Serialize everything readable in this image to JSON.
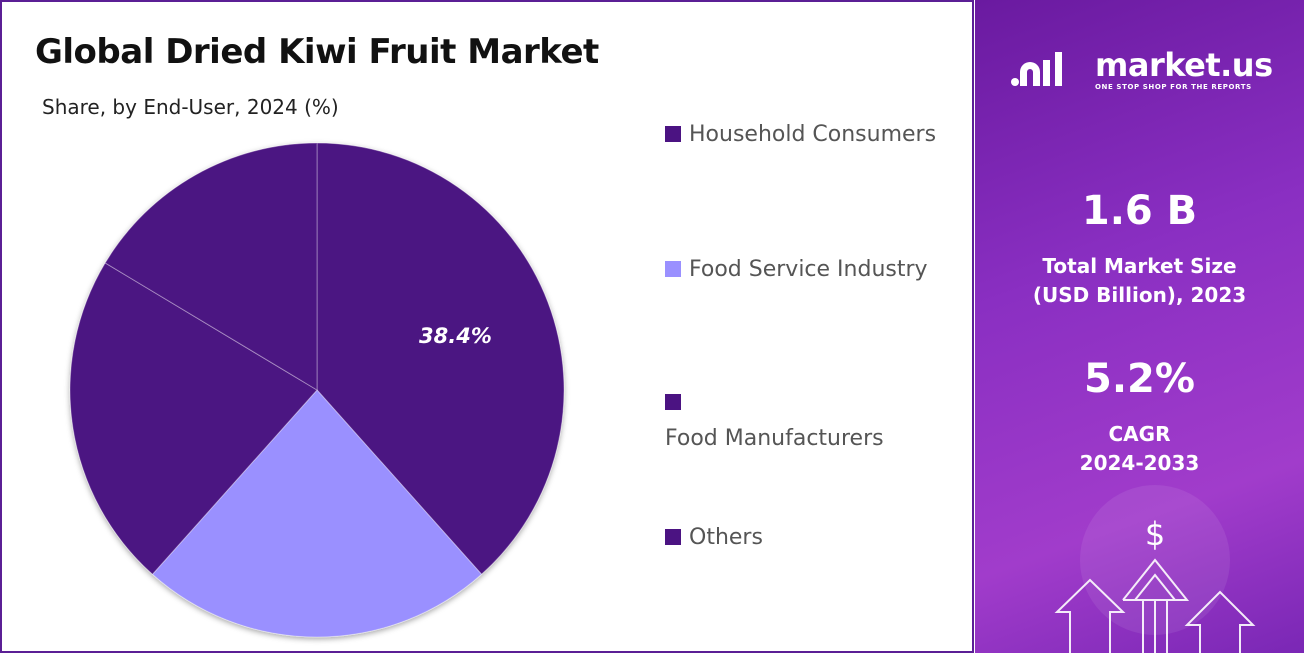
{
  "chart_data": {
    "type": "pie",
    "title": "Global Dried Kiwi Fruit Market",
    "subtitle": "Share, by End-User, 2024 (%)",
    "categories": [
      "Household Consumers",
      "Food Service Industry",
      "Food Manufacturers",
      "Others"
    ],
    "values": [
      38.4,
      23.2,
      22.0,
      16.4
    ],
    "value_labels": [
      "38.4%",
      null,
      null,
      null
    ],
    "colors": [
      "#4b1382",
      "#9a90ff",
      "#4b1382",
      "#4b1382"
    ],
    "legend": "right"
  },
  "panel": {
    "logo": "market.us",
    "tagline": "ONE STOP SHOP FOR THE REPORTS",
    "stats": [
      {
        "value": "1.6 B",
        "label": "Total Market Size (USD Billion), 2023"
      },
      {
        "value": "5.2%",
        "label": "CAGR 2024-2033"
      }
    ]
  }
}
